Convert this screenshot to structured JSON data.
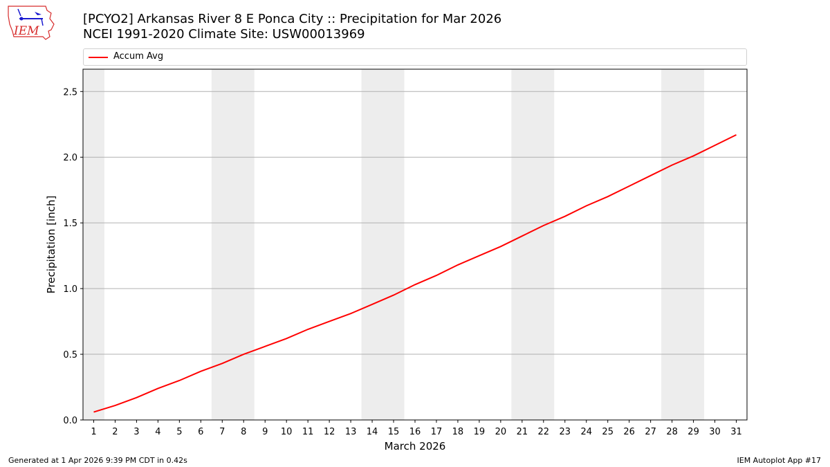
{
  "header": {
    "title_line1": "[PCYO2] Arkansas River 8 E Ponca City :: Precipitation for Mar 2026",
    "title_line2": "NCEI 1991-2020 Climate Site: USW00013969",
    "logo_text": "IEM"
  },
  "legend": {
    "items": [
      {
        "label": "Accum Avg",
        "color": "#ff0000"
      }
    ]
  },
  "footer": {
    "generated": "Generated at 1 Apr 2026 9:39 PM CDT in 0.42s",
    "app": "IEM Autoplot App #17"
  },
  "colors": {
    "line": "#ff0000",
    "weekend_shade": "#ededed",
    "grid": "#b0b0b0",
    "logo_red": "#d62a2a",
    "logo_blue": "#1a1ad0"
  },
  "chart_data": {
    "type": "line",
    "title": "[PCYO2] Arkansas River 8 E Ponca City :: Precipitation for Mar 2026",
    "subtitle": "NCEI 1991-2020 Climate Site: USW00013969",
    "xlabel": "March 2026",
    "ylabel": "Precipitation [inch]",
    "x": [
      1,
      2,
      3,
      4,
      5,
      6,
      7,
      8,
      9,
      10,
      11,
      12,
      13,
      14,
      15,
      16,
      17,
      18,
      19,
      20,
      21,
      22,
      23,
      24,
      25,
      26,
      27,
      28,
      29,
      30,
      31
    ],
    "series": [
      {
        "name": "Accum Avg",
        "color": "#ff0000",
        "values": [
          0.06,
          0.11,
          0.17,
          0.24,
          0.3,
          0.37,
          0.43,
          0.5,
          0.56,
          0.62,
          0.69,
          0.75,
          0.81,
          0.88,
          0.95,
          1.03,
          1.1,
          1.18,
          1.25,
          1.32,
          1.4,
          1.48,
          1.55,
          1.63,
          1.7,
          1.78,
          1.86,
          1.94,
          2.01,
          2.09,
          2.17
        ]
      }
    ],
    "xticks": [
      "1",
      "2",
      "3",
      "4",
      "5",
      "6",
      "7",
      "8",
      "9",
      "10",
      "11",
      "12",
      "13",
      "14",
      "15",
      "16",
      "17",
      "18",
      "19",
      "20",
      "21",
      "22",
      "23",
      "24",
      "25",
      "26",
      "27",
      "28",
      "29",
      "30",
      "31"
    ],
    "yticks": [
      "0.0",
      "0.5",
      "1.0",
      "1.5",
      "2.0",
      "2.5"
    ],
    "xlim": [
      0.5,
      31.5
    ],
    "ylim": [
      0,
      2.67
    ],
    "grid": "y",
    "legend_position": "top (above axes)",
    "weekend_shading": [
      [
        0.5,
        1.5
      ],
      [
        6.5,
        8.5
      ],
      [
        13.5,
        15.5
      ],
      [
        20.5,
        22.5
      ],
      [
        27.5,
        29.5
      ]
    ]
  }
}
